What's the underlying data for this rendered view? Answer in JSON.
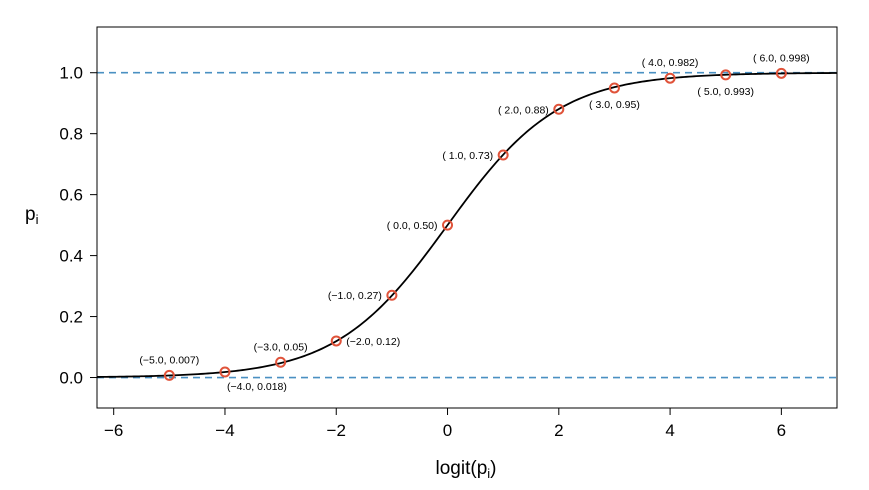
{
  "chart_data": {
    "type": "line",
    "xlabel": "logit(p",
    "xlabel_sub": "i",
    "xlabel_close": ")",
    "ylabel": "p",
    "ylabel_sub": "i",
    "xlim": [
      -6.3,
      7.0
    ],
    "ylim": [
      -0.1,
      1.15
    ],
    "xticks": [
      -6,
      -4,
      -2,
      0,
      2,
      4,
      6
    ],
    "xtick_labels": [
      "−6",
      "−4",
      "−2",
      "0",
      "2",
      "4",
      "6"
    ],
    "yticks": [
      0.0,
      0.2,
      0.4,
      0.6,
      0.8,
      1.0
    ],
    "ytick_labels": [
      "0.0",
      "0.2",
      "0.4",
      "0.6",
      "0.8",
      "1.0"
    ],
    "grid": false,
    "curve": "logistic",
    "reference_lines": [
      0.0,
      1.0
    ],
    "points": [
      {
        "x": -5.0,
        "y": 0.007,
        "label": "(−5.0, 0.007)",
        "label_pos": "above"
      },
      {
        "x": -4.0,
        "y": 0.018,
        "label": "(−4.0, 0.018)",
        "label_pos": "below-right"
      },
      {
        "x": -3.0,
        "y": 0.05,
        "label": "(−3.0, 0.05)",
        "label_pos": "above"
      },
      {
        "x": -2.0,
        "y": 0.12,
        "label": "(−2.0, 0.12)",
        "label_pos": "right"
      },
      {
        "x": -1.0,
        "y": 0.27,
        "label": "(−1.0, 0.27)",
        "label_pos": "left"
      },
      {
        "x": 0.0,
        "y": 0.5,
        "label": "( 0.0, 0.50)",
        "label_pos": "left"
      },
      {
        "x": 1.0,
        "y": 0.73,
        "label": "( 1.0, 0.73)",
        "label_pos": "left"
      },
      {
        "x": 2.0,
        "y": 0.88,
        "label": "( 2.0, 0.88)",
        "label_pos": "left"
      },
      {
        "x": 3.0,
        "y": 0.95,
        "label": "( 3.0, 0.95)",
        "label_pos": "below"
      },
      {
        "x": 4.0,
        "y": 0.982,
        "label": "( 4.0, 0.982)",
        "label_pos": "above"
      },
      {
        "x": 5.0,
        "y": 0.993,
        "label": "( 5.0, 0.993)",
        "label_pos": "below"
      },
      {
        "x": 6.0,
        "y": 0.998,
        "label": "( 6.0, 0.998)",
        "label_pos": "above"
      }
    ],
    "colors": {
      "curve": "#000000",
      "points": "#e0533a",
      "reference_line": "#4a90c2"
    }
  }
}
